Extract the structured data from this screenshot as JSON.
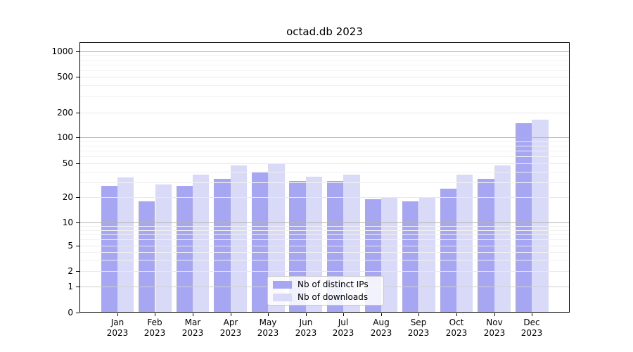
{
  "title": "octad.db 2023",
  "legend": {
    "items": [
      {
        "label": "Nb of distinct IPs",
        "color": "#a6a6f2"
      },
      {
        "label": "Nb of downloads",
        "color": "#d9d9f8"
      }
    ]
  },
  "axes": {
    "y_tick_labels": [
      "0",
      "1",
      "2",
      "5",
      "10",
      "20",
      "50",
      "100",
      "200",
      "500",
      "1000"
    ],
    "x_months": [
      "Jan",
      "Feb",
      "Mar",
      "Apr",
      "May",
      "Jun",
      "Jul",
      "Aug",
      "Sep",
      "Oct",
      "Nov",
      "Dec"
    ],
    "x_year": "2023"
  },
  "chart_data": {
    "type": "bar",
    "title": "octad.db 2023",
    "categories": [
      "Jan 2023",
      "Feb 2023",
      "Mar 2023",
      "Apr 2023",
      "May 2023",
      "Jun 2023",
      "Jul 2023",
      "Aug 2023",
      "Sep 2023",
      "Oct 2023",
      "Nov 2023",
      "Dec 2023"
    ],
    "series": [
      {
        "name": "Nb of distinct IPs",
        "color": "#a6a6f2",
        "values": [
          27,
          18,
          27,
          33,
          40,
          31,
          31,
          19,
          18,
          25,
          33,
          150
        ]
      },
      {
        "name": "Nb of downloads",
        "color": "#d9d9f8",
        "values": [
          34,
          28,
          37,
          47,
          50,
          35,
          37,
          20,
          20,
          37,
          47,
          165
        ]
      }
    ],
    "xlabel": "",
    "ylabel": "",
    "yscale": "log-like with zero baseline (symlog)",
    "y_ticks": [
      0,
      1,
      2,
      5,
      10,
      20,
      50,
      100,
      200,
      500,
      1000
    ],
    "ylim": [
      0,
      1300
    ],
    "grid": true,
    "grid_above_bars": true,
    "legend_position": "lower center"
  }
}
